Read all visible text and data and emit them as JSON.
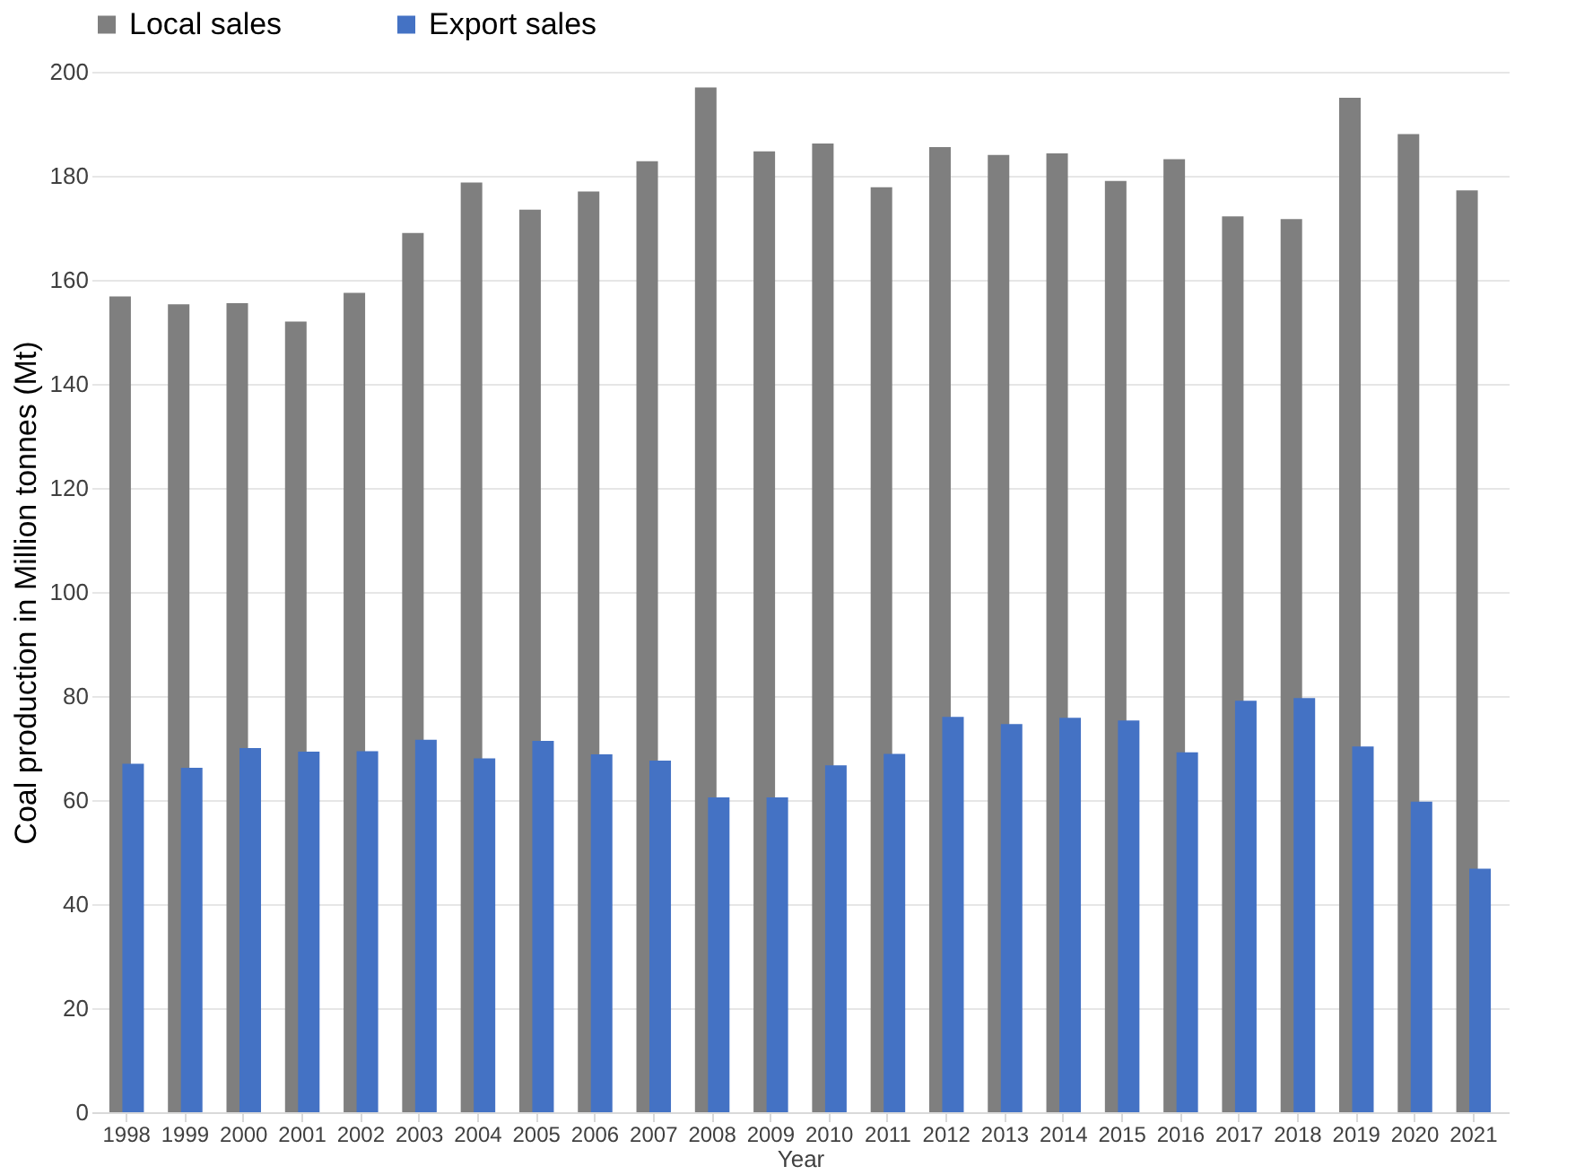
{
  "chart_data": {
    "type": "bar",
    "xlabel": "Year",
    "ylabel": "Coal production in Million tonnes (Mt)",
    "categories": [
      "1998",
      "1999",
      "2000",
      "2001",
      "2002",
      "2003",
      "2004",
      "2005",
      "2006",
      "2007",
      "2008",
      "2009",
      "2010",
      "2011",
      "2012",
      "2013",
      "2014",
      "2015",
      "2016",
      "2017",
      "2018",
      "2019",
      "2020",
      "2021"
    ],
    "series": [
      {
        "name": "Local sales",
        "color": "#7f7f7f",
        "values": [
          156.8,
          155.3,
          155.5,
          152,
          157.5,
          169,
          178.7,
          173.5,
          177,
          182.8,
          197,
          184.7,
          186.2,
          177.8,
          185.5,
          184,
          184.3,
          179,
          183.2,
          172.2,
          171.7,
          195,
          188,
          177.2
        ]
      },
      {
        "name": "Export sales",
        "color": "#4472c4",
        "values": [
          67,
          66.2,
          70,
          69.3,
          69.4,
          71.6,
          68,
          71.4,
          68.8,
          67.6,
          60.5,
          60.5,
          66.7,
          68.9,
          76,
          74.6,
          75.8,
          75.3,
          69.2,
          79.1,
          79.6,
          70.3,
          59.7,
          46.8
        ]
      }
    ],
    "ylim": [
      0,
      200
    ],
    "yticks": [
      0,
      20,
      40,
      60,
      80,
      100,
      120,
      140,
      160,
      180,
      200
    ],
    "grid": "y",
    "legend": "top"
  }
}
